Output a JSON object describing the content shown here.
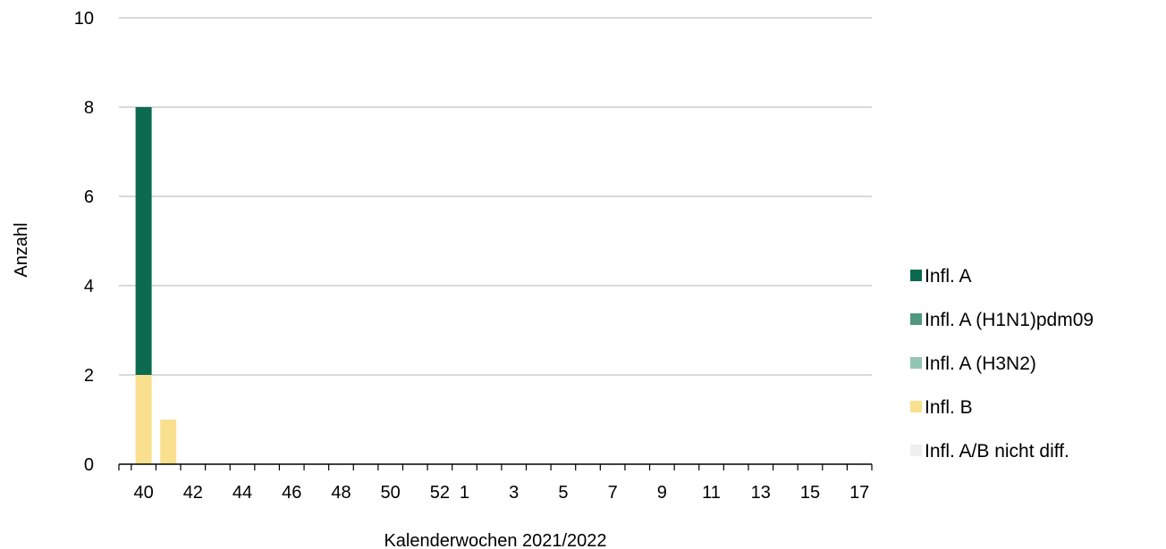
{
  "chart_data": {
    "type": "bar",
    "stacked": true,
    "title": "",
    "xlabel": "Kalenderwochen 2021/2022",
    "ylabel": "Anzahl",
    "ylim": [
      0,
      10
    ],
    "yticks": [
      "0",
      "2",
      "4",
      "6",
      "8",
      "10"
    ],
    "grid": true,
    "legend_position": "right",
    "categories": [
      "40",
      "41",
      "42",
      "43",
      "44",
      "45",
      "46",
      "47",
      "48",
      "49",
      "50",
      "51",
      "52",
      "1",
      "2",
      "3",
      "4",
      "5",
      "6",
      "7",
      "8",
      "9",
      "10",
      "11",
      "12",
      "13",
      "14",
      "15",
      "16",
      "17"
    ],
    "xtick_labels": [
      "40",
      "",
      "42",
      "",
      "44",
      "",
      "46",
      "",
      "48",
      "",
      "50",
      "",
      "52",
      "1",
      "",
      "3",
      "",
      "5",
      "",
      "7",
      "",
      "9",
      "",
      "11",
      "",
      "13",
      "",
      "15",
      "",
      "17"
    ],
    "series": [
      {
        "name": "Infl. B",
        "color": "#f9e08e",
        "values": [
          2,
          1,
          0,
          0,
          0,
          0,
          0,
          0,
          0,
          0,
          0,
          0,
          0,
          0,
          0,
          0,
          0,
          0,
          0,
          0,
          0,
          0,
          0,
          0,
          0,
          0,
          0,
          0,
          0,
          0
        ]
      },
      {
        "name": "Infl. A/B nicht diff.",
        "color": "#efefef",
        "values": [
          0,
          0,
          0,
          0,
          0,
          0,
          0,
          0,
          0,
          0,
          0,
          0,
          0,
          0,
          0,
          0,
          0,
          0,
          0,
          0,
          0,
          0,
          0,
          0,
          0,
          0,
          0,
          0,
          0,
          0
        ]
      },
      {
        "name": "Infl. A (H3N2)",
        "color": "#94c4b4",
        "values": [
          0,
          0,
          0,
          0,
          0,
          0,
          0,
          0,
          0,
          0,
          0,
          0,
          0,
          0,
          0,
          0,
          0,
          0,
          0,
          0,
          0,
          0,
          0,
          0,
          0,
          0,
          0,
          0,
          0,
          0
        ]
      },
      {
        "name": "Infl. A (H1N1)pdm09",
        "color": "#4f977f",
        "values": [
          0,
          0,
          0,
          0,
          0,
          0,
          0,
          0,
          0,
          0,
          0,
          0,
          0,
          0,
          0,
          0,
          0,
          0,
          0,
          0,
          0,
          0,
          0,
          0,
          0,
          0,
          0,
          0,
          0,
          0
        ]
      },
      {
        "name": "Infl. A",
        "color": "#0b6a4f",
        "values": [
          6,
          0,
          0,
          0,
          0,
          0,
          0,
          0,
          0,
          0,
          0,
          0,
          0,
          0,
          0,
          0,
          0,
          0,
          0,
          0,
          0,
          0,
          0,
          0,
          0,
          0,
          0,
          0,
          0,
          0
        ]
      }
    ],
    "legend": [
      {
        "label": "Infl. A",
        "color": "#0b6a4f"
      },
      {
        "label": "Infl. A (H1N1)pdm09",
        "color": "#4f977f"
      },
      {
        "label": "Infl. A (H3N2)",
        "color": "#94c4b4"
      },
      {
        "label": "Infl. B",
        "color": "#f9e08e"
      },
      {
        "label": "Infl. A/B nicht diff.",
        "color": "#efefef"
      }
    ]
  }
}
